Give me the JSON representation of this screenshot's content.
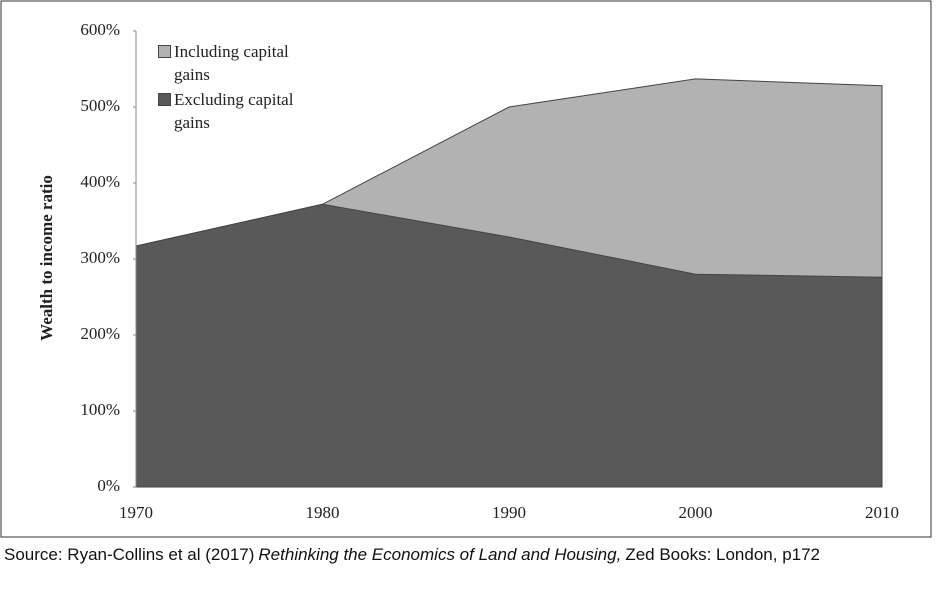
{
  "chart_data": {
    "type": "area",
    "y_label": "Wealth to income ratio",
    "x": [
      1970,
      1980,
      1990,
      2000,
      2010
    ],
    "xlim": [
      1970,
      2010
    ],
    "xticks": [
      1970,
      1980,
      1990,
      2000,
      2010
    ],
    "ylim": [
      0,
      600
    ],
    "yticks": [
      {
        "value": 0,
        "label": "0%"
      },
      {
        "value": 100,
        "label": "100%"
      },
      {
        "value": 200,
        "label": "200%"
      },
      {
        "value": 300,
        "label": "300%"
      },
      {
        "value": 400,
        "label": "400%"
      },
      {
        "value": 500,
        "label": "500%"
      },
      {
        "value": 600,
        "label": "600%"
      }
    ],
    "grid": false,
    "legend": "upper left",
    "series": [
      {
        "name": "Including capital gains",
        "color": "#b2b2b2",
        "values": [
          317,
          372,
          500,
          537,
          528
        ]
      },
      {
        "name": "Excluding capital gains",
        "color": "#595959",
        "values": [
          317,
          372,
          329,
          280,
          276
        ]
      }
    ]
  },
  "source": {
    "prefix": "Source: Ryan-Collins et al (2017)",
    "title": "Rethinking the Economics of Land and Housing,",
    "suffix": "Zed Books: London, p172"
  }
}
